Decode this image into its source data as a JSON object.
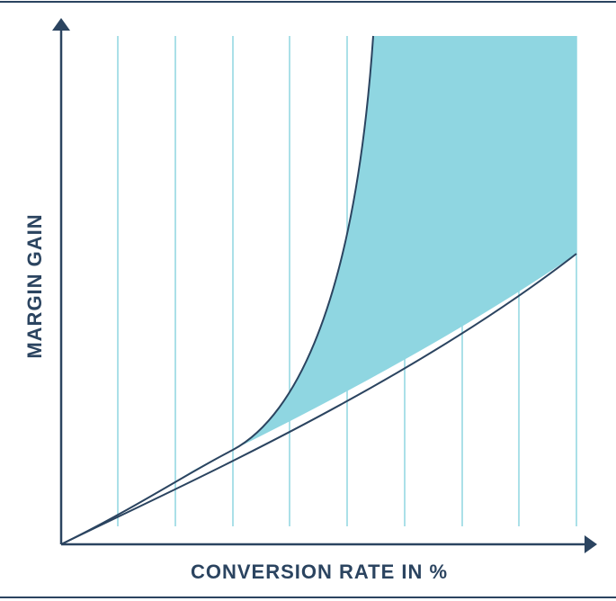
{
  "y_label": "MARGIN GAIN",
  "x_label": "CONVERSION RATE IN %"
}
